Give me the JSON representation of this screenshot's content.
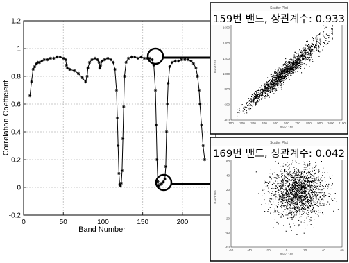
{
  "chart_data": [
    {
      "type": "line",
      "xlabel": "Band Number",
      "ylabel": "Correlation Coefficient",
      "xlim": [
        0,
        242
      ],
      "ylim": [
        -0.2,
        1.2
      ],
      "xticks": [
        "0",
        "50",
        "100",
        "150",
        "200"
      ],
      "xtick_values": [
        0,
        50,
        100,
        150,
        200
      ],
      "yticks": [
        "-0.2",
        "0",
        "0.2",
        "0.4",
        "0.6",
        "0.8",
        "1",
        "1.2"
      ],
      "ytick_values": [
        -0.2,
        0,
        0.2,
        0.4,
        0.6,
        0.8,
        1,
        1.2
      ],
      "grid": true,
      "marker": "*",
      "series": [
        {
          "values": [
            [
              8,
              0.66
            ],
            [
              10,
              0.76
            ],
            [
              12,
              0.85
            ],
            [
              14,
              0.87
            ],
            [
              16,
              0.89
            ],
            [
              18,
              0.9
            ],
            [
              20,
              0.9
            ],
            [
              23,
              0.91
            ],
            [
              26,
              0.92
            ],
            [
              30,
              0.92
            ],
            [
              34,
              0.93
            ],
            [
              38,
              0.93
            ],
            [
              42,
              0.94
            ],
            [
              46,
              0.94
            ],
            [
              50,
              0.93
            ],
            [
              53,
              0.92
            ],
            [
              54,
              0.88
            ],
            [
              55,
              0.86
            ],
            [
              58,
              0.85
            ],
            [
              64,
              0.84
            ],
            [
              69,
              0.82
            ],
            [
              74,
              0.79
            ],
            [
              78,
              0.76
            ],
            [
              80,
              0.8
            ],
            [
              81,
              0.86
            ],
            [
              83,
              0.9
            ],
            [
              86,
              0.92
            ],
            [
              90,
              0.93
            ],
            [
              93,
              0.92
            ],
            [
              95,
              0.9
            ],
            [
              96,
              0.86
            ],
            [
              97,
              0.88
            ],
            [
              99,
              0.91
            ],
            [
              102,
              0.92
            ],
            [
              106,
              0.93
            ],
            [
              110,
              0.92
            ],
            [
              113,
              0.9
            ],
            [
              115,
              0.85
            ],
            [
              117,
              0.7
            ],
            [
              118,
              0.5
            ],
            [
              119,
              0.3
            ],
            [
              120,
              0.1
            ],
            [
              121,
              0.02
            ],
            [
              122,
              0.01
            ],
            [
              123,
              0.03
            ],
            [
              124,
              0.12
            ],
            [
              125,
              0.35
            ],
            [
              126,
              0.58
            ],
            [
              127,
              0.8
            ],
            [
              129,
              0.9
            ],
            [
              132,
              0.93
            ],
            [
              136,
              0.94
            ],
            [
              140,
              0.94
            ],
            [
              144,
              0.93
            ],
            [
              148,
              0.94
            ],
            [
              152,
              0.93
            ],
            [
              156,
              0.93
            ],
            [
              159,
              0.93
            ],
            [
              162,
              0.92
            ],
            [
              164,
              0.88
            ],
            [
              166,
              0.7
            ],
            [
              167,
              0.45
            ],
            [
              168,
              0.2
            ],
            [
              169,
              0.042
            ],
            [
              170,
              0.01
            ],
            [
              172,
              0.02
            ],
            [
              174,
              0.03
            ],
            [
              176,
              0.04
            ],
            [
              178,
              0.06
            ],
            [
              179,
              0.15
            ],
            [
              180,
              0.4
            ],
            [
              181,
              0.6
            ],
            [
              182,
              0.75
            ],
            [
              184,
              0.87
            ],
            [
              187,
              0.9
            ],
            [
              191,
              0.91
            ],
            [
              195,
              0.91
            ],
            [
              199,
              0.92
            ],
            [
              203,
              0.92
            ],
            [
              207,
              0.92
            ],
            [
              211,
              0.91
            ],
            [
              214,
              0.89
            ],
            [
              217,
              0.86
            ],
            [
              219,
              0.8
            ],
            [
              221,
              0.7
            ],
            [
              222,
              0.6
            ],
            [
              224,
              0.45
            ],
            [
              226,
              0.3
            ],
            [
              228,
              0.2
            ]
          ]
        }
      ]
    },
    {
      "type": "scatter",
      "title": "Scatter Plot",
      "annotation": "159번 밴드, 상관계수: 0.933",
      "xlabel": "Band 159",
      "ylabel": "Band 159",
      "xlim": [
        100,
        1100
      ],
      "ylim": [
        300,
        1800
      ],
      "xticks": [
        "100",
        "200",
        "300",
        "400",
        "500",
        "600",
        "700",
        "800",
        "900",
        "1000",
        "1100"
      ],
      "yticks": [
        "400",
        "600",
        "800",
        "1000",
        "1200",
        "1400",
        "1600",
        "1800"
      ],
      "correlation": 0.933
    },
    {
      "type": "scatter",
      "title": "Scatter Plot",
      "annotation": "169번 밴드, 상관계수: 0.042",
      "xlabel": "Band 169",
      "ylabel": "Band 169",
      "xlim": [
        -60,
        60
      ],
      "ylim": [
        -60,
        80
      ],
      "xticks": [
        "-60",
        "-40",
        "-20",
        "0",
        "20",
        "40",
        "60"
      ],
      "yticks": [
        "-60",
        "-40",
        "-20",
        "0",
        "20",
        "40",
        "60",
        "80"
      ],
      "correlation": 0.042
    }
  ],
  "colors": {
    "ink": "#000000",
    "grid": "#b8b8b8",
    "background": "#ffffff"
  }
}
